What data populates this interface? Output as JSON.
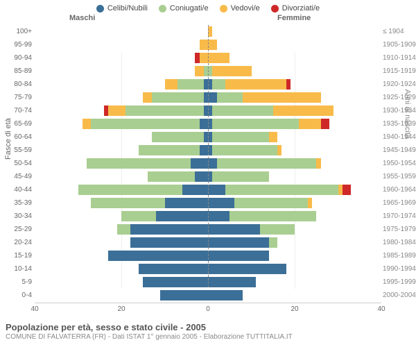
{
  "legend": [
    {
      "label": "Celibi/Nubili",
      "color": "#3b6f97"
    },
    {
      "label": "Coniugati/e",
      "color": "#a9ce91"
    },
    {
      "label": "Vedovi/e",
      "color": "#f8bb4a"
    },
    {
      "label": "Divorziati/e",
      "color": "#cf2828"
    }
  ],
  "headers": {
    "left": "Maschi",
    "right": "Femmine"
  },
  "axis_titles": {
    "left": "Fasce di età",
    "right": "Anni di nascita"
  },
  "xaxis": {
    "max": 40,
    "ticks": [
      40,
      20,
      0,
      20,
      40
    ]
  },
  "colors": {
    "cel": "#3b6f97",
    "con": "#a9ce91",
    "ved": "#f8bb4a",
    "div": "#cf2828",
    "grid": "#eeeeee",
    "centerline": "#888888",
    "bg": "#ffffff"
  },
  "rows": [
    {
      "age": "100+",
      "birth": "≤ 1904",
      "m": {
        "cel": 0,
        "con": 0,
        "ved": 0,
        "div": 0
      },
      "f": {
        "cel": 0,
        "con": 0,
        "ved": 1,
        "div": 0
      }
    },
    {
      "age": "95-99",
      "birth": "1905-1909",
      "m": {
        "cel": 0,
        "con": 0,
        "ved": 2,
        "div": 0
      },
      "f": {
        "cel": 0,
        "con": 0,
        "ved": 2,
        "div": 0
      }
    },
    {
      "age": "90-94",
      "birth": "1910-1914",
      "m": {
        "cel": 0,
        "con": 0,
        "ved": 2,
        "div": 1
      },
      "f": {
        "cel": 0,
        "con": 0,
        "ved": 5,
        "div": 0
      }
    },
    {
      "age": "85-89",
      "birth": "1915-1919",
      "m": {
        "cel": 0,
        "con": 1,
        "ved": 2,
        "div": 0
      },
      "f": {
        "cel": 0,
        "con": 1,
        "ved": 9,
        "div": 0
      }
    },
    {
      "age": "80-84",
      "birth": "1920-1924",
      "m": {
        "cel": 1,
        "con": 6,
        "ved": 3,
        "div": 0
      },
      "f": {
        "cel": 1,
        "con": 3,
        "ved": 14,
        "div": 1
      }
    },
    {
      "age": "75-79",
      "birth": "1925-1929",
      "m": {
        "cel": 1,
        "con": 12,
        "ved": 2,
        "div": 0
      },
      "f": {
        "cel": 2,
        "con": 6,
        "ved": 18,
        "div": 0
      }
    },
    {
      "age": "70-74",
      "birth": "1930-1934",
      "m": {
        "cel": 1,
        "con": 18,
        "ved": 4,
        "div": 1
      },
      "f": {
        "cel": 1,
        "con": 14,
        "ved": 14,
        "div": 0
      }
    },
    {
      "age": "65-69",
      "birth": "1935-1939",
      "m": {
        "cel": 2,
        "con": 25,
        "ved": 2,
        "div": 0
      },
      "f": {
        "cel": 1,
        "con": 20,
        "ved": 5,
        "div": 2
      }
    },
    {
      "age": "60-64",
      "birth": "1940-1944",
      "m": {
        "cel": 1,
        "con": 12,
        "ved": 0,
        "div": 0
      },
      "f": {
        "cel": 1,
        "con": 13,
        "ved": 2,
        "div": 0
      }
    },
    {
      "age": "55-59",
      "birth": "1945-1949",
      "m": {
        "cel": 2,
        "con": 14,
        "ved": 0,
        "div": 0
      },
      "f": {
        "cel": 1,
        "con": 15,
        "ved": 1,
        "div": 0
      }
    },
    {
      "age": "50-54",
      "birth": "1950-1954",
      "m": {
        "cel": 4,
        "con": 24,
        "ved": 0,
        "div": 0
      },
      "f": {
        "cel": 2,
        "con": 23,
        "ved": 1,
        "div": 0
      }
    },
    {
      "age": "45-49",
      "birth": "1955-1959",
      "m": {
        "cel": 3,
        "con": 11,
        "ved": 0,
        "div": 0
      },
      "f": {
        "cel": 1,
        "con": 13,
        "ved": 0,
        "div": 0
      }
    },
    {
      "age": "40-44",
      "birth": "1960-1964",
      "m": {
        "cel": 6,
        "con": 24,
        "ved": 0,
        "div": 0
      },
      "f": {
        "cel": 4,
        "con": 26,
        "ved": 1,
        "div": 2
      }
    },
    {
      "age": "35-39",
      "birth": "1965-1969",
      "m": {
        "cel": 10,
        "con": 17,
        "ved": 0,
        "div": 0
      },
      "f": {
        "cel": 6,
        "con": 17,
        "ved": 1,
        "div": 0
      }
    },
    {
      "age": "30-34",
      "birth": "1970-1974",
      "m": {
        "cel": 12,
        "con": 8,
        "ved": 0,
        "div": 0
      },
      "f": {
        "cel": 5,
        "con": 20,
        "ved": 0,
        "div": 0
      }
    },
    {
      "age": "25-29",
      "birth": "1975-1979",
      "m": {
        "cel": 18,
        "con": 3,
        "ved": 0,
        "div": 0
      },
      "f": {
        "cel": 12,
        "con": 8,
        "ved": 0,
        "div": 0
      }
    },
    {
      "age": "20-24",
      "birth": "1980-1984",
      "m": {
        "cel": 18,
        "con": 0,
        "ved": 0,
        "div": 0
      },
      "f": {
        "cel": 14,
        "con": 2,
        "ved": 0,
        "div": 0
      }
    },
    {
      "age": "15-19",
      "birth": "1985-1989",
      "m": {
        "cel": 23,
        "con": 0,
        "ved": 0,
        "div": 0
      },
      "f": {
        "cel": 14,
        "con": 0,
        "ved": 0,
        "div": 0
      }
    },
    {
      "age": "10-14",
      "birth": "1990-1994",
      "m": {
        "cel": 16,
        "con": 0,
        "ved": 0,
        "div": 0
      },
      "f": {
        "cel": 18,
        "con": 0,
        "ved": 0,
        "div": 0
      }
    },
    {
      "age": "5-9",
      "birth": "1995-1999",
      "m": {
        "cel": 15,
        "con": 0,
        "ved": 0,
        "div": 0
      },
      "f": {
        "cel": 11,
        "con": 0,
        "ved": 0,
        "div": 0
      }
    },
    {
      "age": "0-4",
      "birth": "2000-2004",
      "m": {
        "cel": 11,
        "con": 0,
        "ved": 0,
        "div": 0
      },
      "f": {
        "cel": 8,
        "con": 0,
        "ved": 0,
        "div": 0
      }
    }
  ],
  "footer": {
    "title": "Popolazione per età, sesso e stato civile - 2005",
    "subtitle": "COMUNE DI FALVATERRA (FR) - Dati ISTAT 1° gennaio 2005 - Elaborazione TUTTITALIA.IT"
  }
}
